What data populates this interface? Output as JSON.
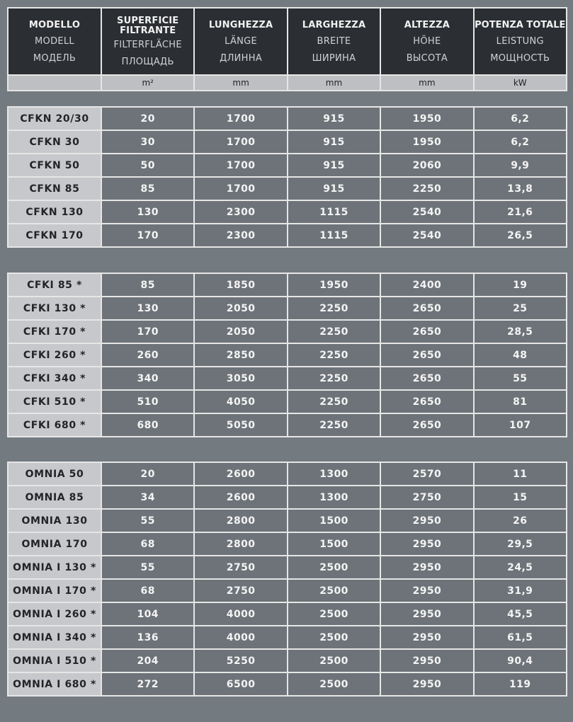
{
  "header": {
    "columns": [
      {
        "it": "MODELLO",
        "de": "MODELL",
        "ru": "МОДЕЛЬ",
        "unit": ""
      },
      {
        "it": "SUPERFICIE FILTRANTE",
        "de": "FILTERFLÄCHE",
        "ru": "ПЛОЩАДЬ",
        "unit": "m²"
      },
      {
        "it": "LUNGHEZZA",
        "de": "LÄNGE",
        "ru": "ДЛИННА",
        "unit": "mm"
      },
      {
        "it": "LARGHEZZA",
        "de": "BREITE",
        "ru": "ШИРИНА",
        "unit": "mm"
      },
      {
        "it": "ALTEZZA",
        "de": "HÖHE",
        "ru": "ВЫСОТА",
        "unit": "mm"
      },
      {
        "it": "POTENZA TOTALE",
        "de": "LEISTUNG",
        "ru": "МОЩНОСТЬ",
        "unit": "kW"
      }
    ]
  },
  "groups": [
    {
      "rows": [
        [
          "CFKN 20/30",
          "20",
          "1700",
          "915",
          "1950",
          "6,2"
        ],
        [
          "CFKN 30",
          "30",
          "1700",
          "915",
          "1950",
          "6,2"
        ],
        [
          "CFKN 50",
          "50",
          "1700",
          "915",
          "2060",
          "9,9"
        ],
        [
          "CFKN 85",
          "85",
          "1700",
          "915",
          "2250",
          "13,8"
        ],
        [
          "CFKN 130",
          "130",
          "2300",
          "1115",
          "2540",
          "21,6"
        ],
        [
          "CFKN 170",
          "170",
          "2300",
          "1115",
          "2540",
          "26,5"
        ]
      ]
    },
    {
      "rows": [
        [
          "CFKI 85 *",
          "85",
          "1850",
          "1950",
          "2400",
          "19"
        ],
        [
          "CFKI 130 *",
          "130",
          "2050",
          "2250",
          "2650",
          "25"
        ],
        [
          "CFKI 170 *",
          "170",
          "2050",
          "2250",
          "2650",
          "28,5"
        ],
        [
          "CFKI 260 *",
          "260",
          "2850",
          "2250",
          "2650",
          "48"
        ],
        [
          "CFKI 340 *",
          "340",
          "3050",
          "2250",
          "2650",
          "55"
        ],
        [
          "CFKI 510 *",
          "510",
          "4050",
          "2250",
          "2650",
          "81"
        ],
        [
          "CFKI 680 *",
          "680",
          "5050",
          "2250",
          "2650",
          "107"
        ]
      ]
    },
    {
      "rows": [
        [
          "OMNIA 50",
          "20",
          "2600",
          "1300",
          "2570",
          "11"
        ],
        [
          "OMNIA 85",
          "34",
          "2600",
          "1300",
          "2750",
          "15"
        ],
        [
          "OMNIA 130",
          "55",
          "2800",
          "1500",
          "2950",
          "26"
        ],
        [
          "OMNIA 170",
          "68",
          "2800",
          "1500",
          "2950",
          "29,5"
        ],
        [
          "OMNIA I 130 *",
          "55",
          "2750",
          "2500",
          "2950",
          "24,5"
        ],
        [
          "OMNIA I 170 *",
          "68",
          "2750",
          "2500",
          "2950",
          "31,9"
        ],
        [
          "OMNIA I 260 *",
          "104",
          "4000",
          "2500",
          "2950",
          "45,5"
        ],
        [
          "OMNIA I 340 *",
          "136",
          "4000",
          "2500",
          "2950",
          "61,5"
        ],
        [
          "OMNIA I 510 *",
          "204",
          "5250",
          "2500",
          "2950",
          "90,4"
        ],
        [
          "OMNIA I 680 *",
          "272",
          "6500",
          "2500",
          "2950",
          "119"
        ]
      ]
    }
  ],
  "colors": {
    "background": "#737a80",
    "header_bg": "#2b2e33",
    "unit_row_bg": "#bdbfc2",
    "model_cell_bg": "#c6c8cb",
    "value_cell_bg": "#6d7379",
    "border": "#e6e6e6"
  }
}
